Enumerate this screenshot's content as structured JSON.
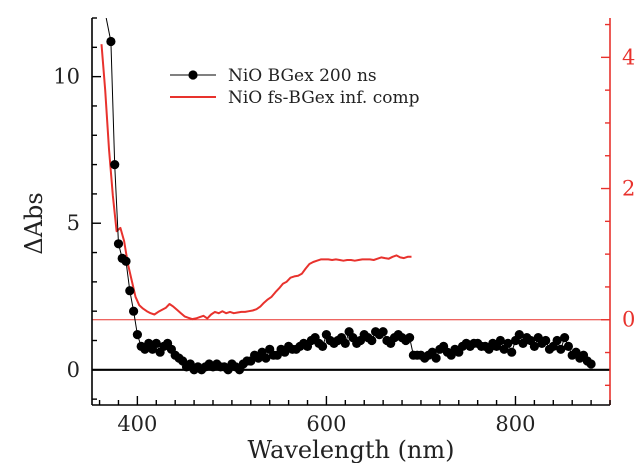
{
  "chart_data": {
    "type": "line",
    "xlabel": "Wavelength (nm)",
    "ylabel": "ΔAbs",
    "xlim": [
      352,
      900
    ],
    "ylim": [
      -1.2,
      12
    ],
    "y2lim": [
      -1.3,
      4.6
    ],
    "xticks": [
      "400",
      "600",
      "800"
    ],
    "yticks": [
      "0",
      "5",
      "10"
    ],
    "y2ticks": [
      "0",
      "2",
      "4"
    ],
    "grid": false,
    "legend_position": "top-center",
    "colors": {
      "axis": "#000000",
      "series_a": "#000000",
      "series_b": "#e8322d",
      "right_axis": "#e8322d"
    },
    "series": [
      {
        "name": "NiO BGex 200 ns",
        "axis": "left",
        "style": "line-markers",
        "x": [
          372,
          376,
          380,
          384,
          388,
          392,
          396,
          400,
          404,
          408,
          412,
          416,
          420,
          424,
          428,
          432,
          436,
          440,
          444,
          448,
          452,
          456,
          460,
          464,
          468,
          472,
          476,
          480,
          484,
          488,
          492,
          496,
          500,
          504,
          508,
          512,
          516,
          520,
          524,
          528,
          532,
          536,
          540,
          544,
          548,
          552,
          556,
          560,
          564,
          568,
          572,
          576,
          580,
          584,
          588,
          592,
          596,
          600,
          604,
          608,
          612,
          616,
          620,
          624,
          628,
          632,
          636,
          640,
          644,
          648,
          652,
          656,
          660,
          664,
          668,
          672,
          676,
          680,
          684,
          688,
          692,
          696,
          700,
          704,
          708,
          712,
          716,
          720,
          724,
          728,
          732,
          736,
          740,
          744,
          748,
          752,
          756,
          760,
          764,
          768,
          772,
          776,
          780,
          784,
          788,
          792,
          796,
          800,
          804,
          808,
          812,
          816,
          820,
          824,
          828,
          832,
          836,
          840,
          844,
          848,
          852,
          856,
          860,
          864,
          868,
          872,
          876,
          880
        ],
        "y": [
          11.2,
          7.0,
          4.3,
          3.8,
          3.7,
          2.7,
          2.0,
          1.2,
          0.8,
          0.7,
          0.9,
          0.7,
          0.9,
          0.6,
          0.8,
          0.9,
          0.7,
          0.5,
          0.4,
          0.3,
          0.1,
          0.2,
          0.0,
          0.1,
          0.0,
          0.1,
          0.2,
          0.1,
          0.2,
          0.1,
          0.1,
          0.0,
          0.2,
          0.1,
          0.0,
          0.2,
          0.3,
          0.3,
          0.5,
          0.4,
          0.6,
          0.4,
          0.7,
          0.5,
          0.5,
          0.7,
          0.6,
          0.8,
          0.7,
          0.7,
          0.8,
          0.9,
          0.8,
          1.0,
          1.1,
          0.9,
          0.8,
          1.2,
          1.0,
          0.9,
          1.0,
          1.1,
          0.9,
          1.3,
          1.1,
          0.9,
          1.0,
          1.2,
          1.1,
          1.0,
          1.3,
          1.2,
          1.3,
          1.0,
          0.9,
          1.1,
          1.2,
          1.1,
          1.0,
          1.1,
          0.5,
          0.5,
          0.5,
          0.4,
          0.5,
          0.6,
          0.4,
          0.7,
          0.8,
          0.6,
          0.5,
          0.7,
          0.6,
          0.8,
          0.9,
          0.8,
          0.9,
          0.9,
          0.8,
          0.8,
          0.7,
          0.9,
          0.8,
          1.0,
          0.7,
          0.9,
          0.6,
          1.0,
          1.2,
          0.9,
          1.1,
          1.0,
          0.8,
          1.1,
          0.9,
          1.0,
          0.7,
          0.8,
          1.0,
          0.7,
          1.1,
          0.8,
          0.5,
          0.6,
          0.4,
          0.5,
          0.3,
          0.2
        ]
      },
      {
        "name": "NiO fs-BGex inf. comp",
        "axis": "right",
        "style": "line",
        "x": [
          362,
          366,
          370,
          374,
          378,
          382,
          386,
          390,
          394,
          398,
          402,
          406,
          410,
          414,
          418,
          422,
          426,
          430,
          434,
          438,
          442,
          446,
          450,
          454,
          458,
          462,
          466,
          470,
          474,
          478,
          482,
          486,
          490,
          494,
          498,
          502,
          506,
          510,
          514,
          518,
          522,
          526,
          530,
          534,
          538,
          542,
          546,
          550,
          554,
          558,
          562,
          566,
          570,
          574,
          578,
          582,
          586,
          590,
          594,
          598,
          602,
          606,
          610,
          614,
          618,
          622,
          626,
          630,
          634,
          638,
          642,
          646,
          650,
          654,
          658,
          662,
          666,
          670,
          674,
          678,
          682,
          686,
          690
        ],
        "y": [
          4.2,
          3.5,
          2.6,
          1.9,
          1.35,
          1.4,
          1.2,
          0.85,
          0.6,
          0.35,
          0.22,
          0.17,
          0.13,
          0.1,
          0.08,
          0.12,
          0.15,
          0.18,
          0.24,
          0.2,
          0.15,
          0.1,
          0.05,
          0.03,
          0.01,
          0.02,
          0.04,
          0.06,
          0.02,
          0.08,
          0.12,
          0.1,
          0.13,
          0.1,
          0.12,
          0.1,
          0.11,
          0.12,
          0.12,
          0.13,
          0.14,
          0.16,
          0.2,
          0.26,
          0.31,
          0.35,
          0.42,
          0.48,
          0.55,
          0.58,
          0.64,
          0.66,
          0.67,
          0.7,
          0.78,
          0.85,
          0.88,
          0.9,
          0.92,
          0.92,
          0.92,
          0.91,
          0.92,
          0.91,
          0.9,
          0.91,
          0.91,
          0.9,
          0.91,
          0.92,
          0.92,
          0.92,
          0.91,
          0.93,
          0.95,
          0.94,
          0.93,
          0.96,
          0.98,
          0.95,
          0.94,
          0.96,
          0.96
        ]
      }
    ]
  }
}
